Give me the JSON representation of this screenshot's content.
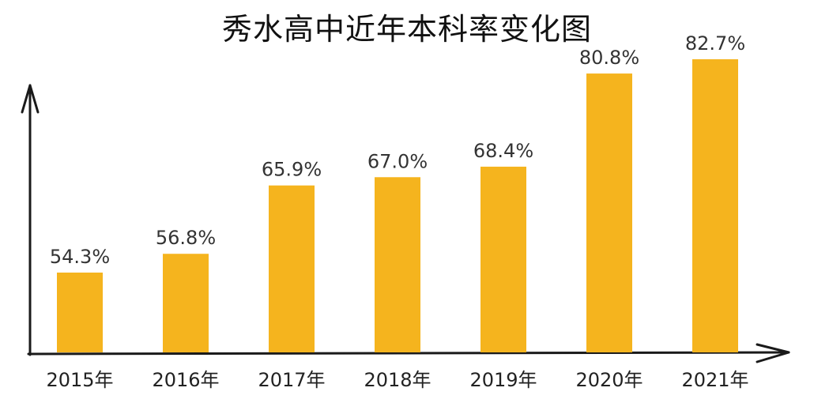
{
  "chart_data": {
    "type": "bar",
    "title": "秀水高中近年本科率变化图",
    "categories": [
      "2015年",
      "2016年",
      "2017年",
      "2018年",
      "2019年",
      "2020年",
      "2021年"
    ],
    "values": [
      54.3,
      56.8,
      65.9,
      67.0,
      68.4,
      80.8,
      82.7
    ],
    "value_labels": [
      "54.3%",
      "56.8%",
      "65.9%",
      "67.0%",
      "68.4%",
      "80.8%",
      "82.7%"
    ],
    "xlabel": "",
    "ylabel": "",
    "grid": false,
    "bar_color": "#F5B41E",
    "axis_color": "#1a1a1a"
  }
}
